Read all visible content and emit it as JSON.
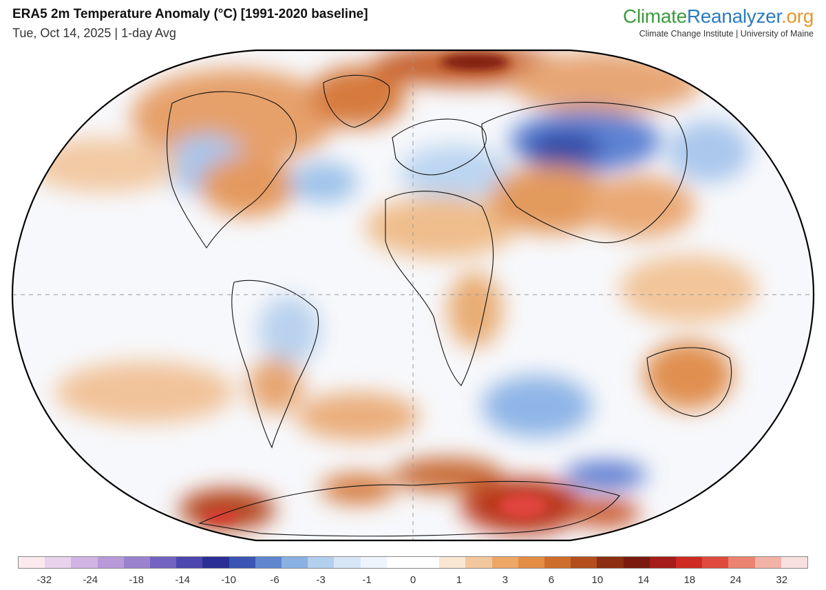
{
  "header": {
    "title": "ERA5 2m Temperature Anomaly (°C) [1991-2020 baseline]",
    "subtitle": "Tue, Oct 14, 2025 | 1-day Avg"
  },
  "brand": {
    "name_part1": "Climate",
    "name_part2": "Reanalyzer",
    "name_part3": ".org",
    "tagline": "Climate Change Institute | University of Maine",
    "colors": {
      "part1": "#3a9a3c",
      "part2": "#2b7bbf",
      "part3": "#e8962a"
    }
  },
  "map": {
    "projection": "Robinson (world)",
    "graticule": "equator and prime meridian shown dashed",
    "features": [
      {
        "name": "Central Siberia",
        "anomaly": "strong cold"
      },
      {
        "name": "Antarctica east",
        "anomaly": "strong warm"
      },
      {
        "name": "Canada / Greenland",
        "anomaly": "warm"
      },
      {
        "name": "Southern Ocean south of Africa",
        "anomaly": "cold"
      },
      {
        "name": "Australia",
        "anomaly": "warm"
      }
    ]
  },
  "colorbar": {
    "colors": [
      "#fbe9ee",
      "#e9d2ec",
      "#d2b4e4",
      "#b99ad9",
      "#9a82ce",
      "#7263c0",
      "#4b47ae",
      "#2b2f95",
      "#3a55b3",
      "#5f86cf",
      "#8ab1e3",
      "#b3cfee",
      "#d6e6f6",
      "#edf4fb",
      "#ffffff",
      "#ffffff",
      "#f9e6d3",
      "#f3c79d",
      "#eda767",
      "#e38d45",
      "#cf6d2c",
      "#b24f1c",
      "#8d2d12",
      "#7a1a0f",
      "#a51c18",
      "#cf2a22",
      "#e04a3d",
      "#ec8270",
      "#f3b2a6",
      "#f8dfe0"
    ],
    "ticks": [
      "-32",
      "-24",
      "-18",
      "-14",
      "-10",
      "-6",
      "-3",
      "-1",
      "0",
      "1",
      "3",
      "6",
      "10",
      "14",
      "18",
      "24",
      "32"
    ]
  }
}
